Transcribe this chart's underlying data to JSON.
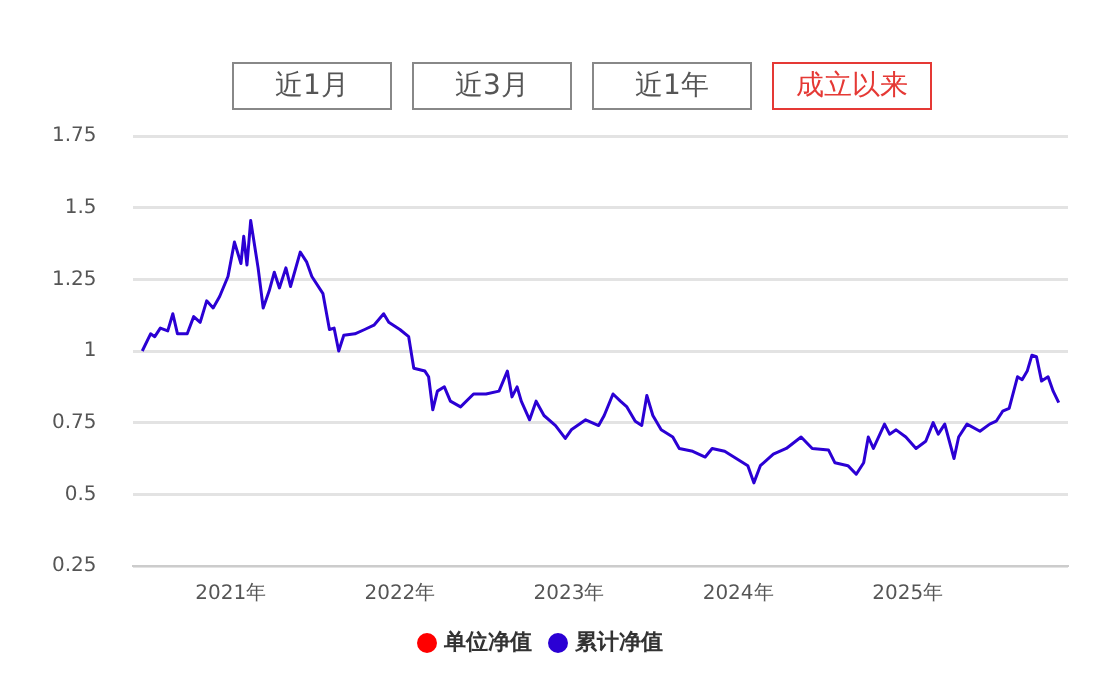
{
  "chart_data": {
    "type": "line",
    "annotations": [
      "近1月",
      "近3月",
      "近1年",
      "成立以来"
    ],
    "xlim": [
      "2020-06-03",
      "2025-12-13"
    ],
    "xticks": [
      {
        "value": "2021-01-01",
        "label": "2021年"
      },
      {
        "value": "2022-01-01",
        "label": "2022年"
      },
      {
        "value": "2023-01-01",
        "label": "2023年"
      },
      {
        "value": "2024-01-01",
        "label": "2024年"
      },
      {
        "value": "2025-01-01",
        "label": "2025年"
      }
    ],
    "ylim": [
      0.25,
      1.75
    ],
    "yticks": [
      0.25,
      0.5,
      0.75,
      1,
      1.25,
      1.5,
      1.75
    ],
    "grid": "y",
    "legend": "bottom",
    "marker": "none",
    "line_style": "solid",
    "series": [
      {
        "name": "单位净值",
        "color": "#ff0000"
      },
      {
        "name": "累计净值",
        "color": "#2b00d4",
        "x": [
          "2020-06-24",
          "2020-07-12",
          "2020-07-21",
          "2020-08-02",
          "2020-08-18",
          "2020-08-29",
          "2020-09-08",
          "2020-09-29",
          "2020-10-13",
          "2020-10-27",
          "2020-11-10",
          "2020-11-24",
          "2020-12-08",
          "2020-12-26",
          "2021-01-09",
          "2021-01-23",
          "2021-01-29",
          "2021-02-05",
          "2021-02-13",
          "2021-03-01",
          "2021-03-12",
          "2021-03-25",
          "2021-04-05",
          "2021-04-16",
          "2021-04-30",
          "2021-05-10",
          "2021-05-31",
          "2021-06-14",
          "2021-06-25",
          "2021-07-19",
          "2021-08-02",
          "2021-08-12",
          "2021-08-22",
          "2021-09-02",
          "2021-09-26",
          "2021-10-17",
          "2021-11-06",
          "2021-11-27",
          "2021-12-08",
          "2022-01-01",
          "2022-01-20",
          "2022-01-31",
          "2022-02-24",
          "2022-03-04",
          "2022-03-13",
          "2022-03-23",
          "2022-04-07",
          "2022-04-20",
          "2022-05-12",
          "2022-06-09",
          "2022-07-06",
          "2022-08-03",
          "2022-08-21",
          "2022-08-31",
          "2022-09-11",
          "2022-09-20",
          "2022-10-08",
          "2022-10-22",
          "2022-11-08",
          "2022-12-03",
          "2022-12-24",
          "2023-01-06",
          "2023-02-06",
          "2023-03-06",
          "2023-03-18",
          "2023-04-06",
          "2023-04-22",
          "2023-05-06",
          "2023-05-24",
          "2023-06-07",
          "2023-06-18",
          "2023-07-01",
          "2023-07-19",
          "2023-08-13",
          "2023-08-27",
          "2023-09-25",
          "2023-10-22",
          "2023-11-06",
          "2023-12-03",
          "2023-12-28",
          "2024-01-22",
          "2024-02-04",
          "2024-02-18",
          "2024-03-17",
          "2024-04-14",
          "2024-05-16",
          "2024-06-09",
          "2024-07-14",
          "2024-07-28",
          "2024-08-25",
          "2024-09-12",
          "2024-09-28",
          "2024-10-08",
          "2024-10-19",
          "2024-11-12",
          "2024-11-23",
          "2024-12-07",
          "2024-12-28",
          "2025-01-19",
          "2025-02-09",
          "2025-02-25",
          "2025-03-08",
          "2025-03-22",
          "2025-04-11",
          "2025-04-21",
          "2025-05-09",
          "2025-06-06",
          "2025-06-27",
          "2025-07-11",
          "2025-07-25",
          "2025-08-08",
          "2025-08-26",
          "2025-09-05",
          "2025-09-16",
          "2025-09-26",
          "2025-10-06",
          "2025-10-17",
          "2025-10-31",
          "2025-11-11",
          "2025-11-23"
        ],
        "values": [
          1.0,
          1.06,
          1.05,
          1.08,
          1.07,
          1.13,
          1.06,
          1.06,
          1.12,
          1.1,
          1.175,
          1.15,
          1.19,
          1.26,
          1.38,
          1.305,
          1.4,
          1.3,
          1.455,
          1.29,
          1.15,
          1.21,
          1.275,
          1.22,
          1.29,
          1.225,
          1.345,
          1.31,
          1.26,
          1.2,
          1.075,
          1.08,
          1.0,
          1.055,
          1.06,
          1.075,
          1.09,
          1.13,
          1.1,
          1.075,
          1.05,
          0.94,
          0.93,
          0.91,
          0.795,
          0.86,
          0.875,
          0.825,
          0.805,
          0.85,
          0.85,
          0.86,
          0.93,
          0.84,
          0.875,
          0.825,
          0.76,
          0.825,
          0.775,
          0.74,
          0.695,
          0.725,
          0.76,
          0.74,
          0.775,
          0.85,
          0.825,
          0.805,
          0.755,
          0.74,
          0.845,
          0.775,
          0.725,
          0.7,
          0.66,
          0.65,
          0.63,
          0.66,
          0.65,
          0.625,
          0.6,
          0.54,
          0.6,
          0.64,
          0.66,
          0.7,
          0.66,
          0.655,
          0.61,
          0.6,
          0.57,
          0.61,
          0.7,
          0.66,
          0.745,
          0.71,
          0.725,
          0.7,
          0.66,
          0.685,
          0.75,
          0.71,
          0.745,
          0.625,
          0.7,
          0.745,
          0.72,
          0.745,
          0.755,
          0.79,
          0.8,
          0.91,
          0.9,
          0.93,
          0.985,
          0.98,
          0.895,
          0.91,
          0.86,
          0.82
        ]
      }
    ]
  }
}
